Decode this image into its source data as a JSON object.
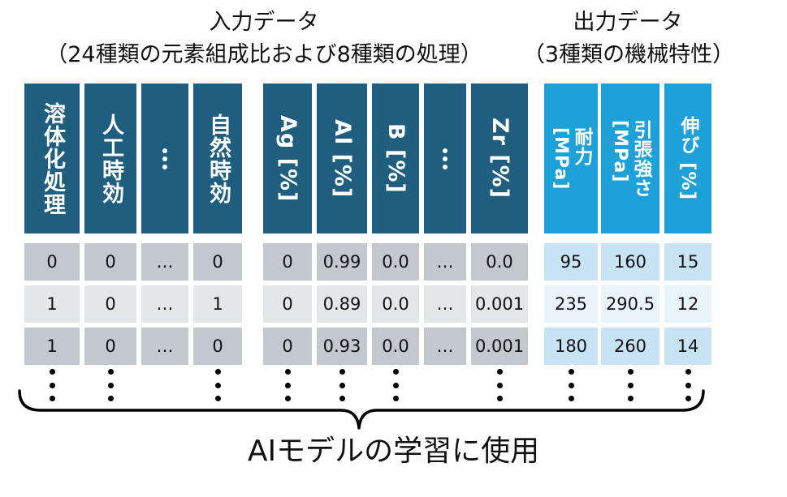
{
  "input_title": "入力データ",
  "input_subtitle": "（24種類の元素組成比および8種類の処理）",
  "output_title": "出力データ",
  "output_subtitle": "（3種類の機械特性）",
  "columns": {
    "solution_treatment": "溶体化処理",
    "artificial_aging": "人工時効",
    "natural_aging": "自然時効",
    "ag": "Ag [%]",
    "al": "Al [%]",
    "b": "B [%]",
    "zr": "Zr [%]",
    "proof_stress_name": "耐力",
    "proof_stress_unit": "[MPa]",
    "tensile_name": "引張強さ",
    "tensile_unit": "[MPa]",
    "elongation": "伸び [%]"
  },
  "rows": [
    {
      "solution": "0",
      "artificial": "0",
      "ellipsis1": "…",
      "natural": "0",
      "ag": "0",
      "al": "0.99",
      "b": "0.0",
      "ellipsis2": "…",
      "zr": "0.0",
      "proof": "95",
      "tensile": "160",
      "elong": "15"
    },
    {
      "solution": "1",
      "artificial": "0",
      "ellipsis1": "…",
      "natural": "1",
      "ag": "0",
      "al": "0.89",
      "b": "0.0",
      "ellipsis2": "…",
      "zr": "0.001",
      "proof": "235",
      "tensile": "290.5",
      "elong": "12"
    },
    {
      "solution": "1",
      "artificial": "0",
      "ellipsis1": "…",
      "natural": "0",
      "ag": "0",
      "al": "0.93",
      "b": "0.0",
      "ellipsis2": "…",
      "zr": "0.001",
      "proof": "180",
      "tensile": "260",
      "elong": "14"
    }
  ],
  "caption": "AIモデルの学習に使用",
  "colors": {
    "input_header": "#1f5e7e",
    "output_header": "#1ea1d9",
    "input_row_dark": "#c3c8ce",
    "input_row_light": "#e4e7ea",
    "output_row_dark": "#c8e3f3",
    "output_row_light": "#e9f4fa"
  }
}
